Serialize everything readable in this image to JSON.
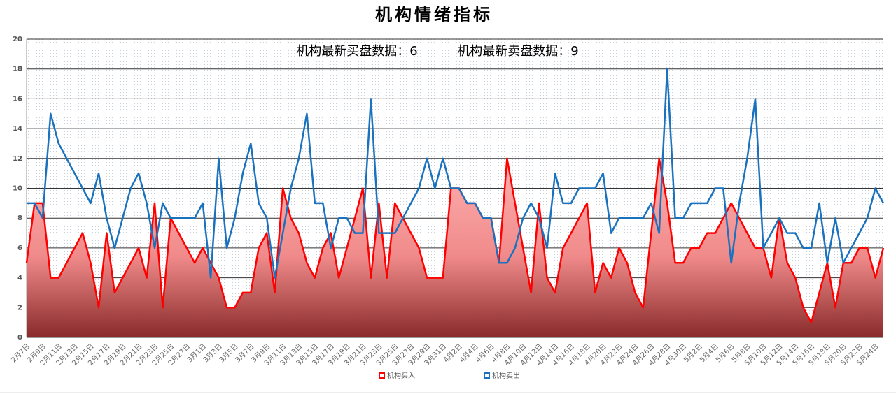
{
  "chart_data": {
    "type": "line",
    "title": "机构情绪指标",
    "annotations": [
      "机构最新买盘数据：6",
      "机构最新卖盘数据：9"
    ],
    "categories": [
      "2月7日",
      null,
      "2月9日",
      null,
      "2月11日",
      null,
      "2月13日",
      null,
      "2月15日",
      null,
      "2月17日",
      null,
      "2月19日",
      null,
      "2月21日",
      null,
      "2月23日",
      null,
      "2月25日",
      null,
      "2月27日",
      null,
      "3月1日",
      null,
      "3月3日",
      null,
      "3月5日",
      null,
      "3月7日",
      null,
      "3月9日",
      null,
      "3月11日",
      null,
      "3月13日",
      null,
      "3月15日",
      null,
      "3月17日",
      null,
      "3月19日",
      null,
      "3月21日",
      null,
      "3月23日",
      null,
      "3月25日",
      null,
      "3月27日",
      null,
      "3月29日",
      null,
      "3月31日",
      null,
      "4月2日",
      null,
      "4月4日",
      null,
      "4月6日",
      null,
      "4月8日",
      null,
      "4月10日",
      null,
      "4月12日",
      null,
      "4月14日",
      null,
      "4月16日",
      null,
      "4月18日",
      null,
      "4月20日",
      null,
      "4月22日",
      null,
      "4月24日",
      null,
      "4月26日",
      null,
      "4月28日",
      null,
      "4月30日",
      null,
      "5月2日",
      null,
      "5月4日",
      null,
      "5月6日",
      null,
      "5月8日",
      null,
      "5月10日",
      null,
      "5月12日",
      null,
      "5月14日",
      null,
      "5月16日",
      null,
      "5月18日",
      null,
      "5月20日",
      null,
      "5月22日",
      null,
      "5月24日",
      null
    ],
    "series": [
      {
        "name": "机构买入",
        "color": "#ff0000",
        "area": true,
        "values": [
          5,
          9,
          9,
          4,
          4,
          5,
          6,
          7,
          5,
          2,
          7,
          3,
          4,
          5,
          6,
          4,
          9,
          2,
          8,
          7,
          6,
          5,
          6,
          5,
          4,
          2,
          2,
          3,
          3,
          6,
          7,
          3,
          10,
          8,
          7,
          5,
          4,
          6,
          7,
          4,
          6,
          8,
          10,
          4,
          9,
          4,
          9,
          8,
          7,
          6,
          4,
          4,
          4,
          10,
          10,
          9,
          9,
          8,
          8,
          5,
          12,
          9,
          6,
          3,
          9,
          4,
          3,
          6,
          7,
          8,
          9,
          3,
          5,
          4,
          6,
          5,
          3,
          2,
          7,
          12,
          9,
          5,
          5,
          6,
          6,
          7,
          7,
          8,
          9,
          8,
          7,
          6,
          6,
          4,
          8,
          5,
          4,
          2,
          1,
          3,
          5,
          2,
          5,
          5,
          6,
          6,
          4,
          6
        ]
      },
      {
        "name": "机构卖出",
        "color": "#1a72bf",
        "area": false,
        "values": [
          9,
          9,
          8,
          15,
          13,
          12,
          11,
          10,
          9,
          11,
          8,
          6,
          8,
          10,
          11,
          9,
          6,
          9,
          8,
          8,
          8,
          8,
          9,
          4,
          12,
          6,
          8,
          11,
          13,
          9,
          8,
          4,
          7,
          10,
          12,
          15,
          9,
          9,
          6,
          8,
          8,
          7,
          7,
          16,
          7,
          7,
          7,
          8,
          9,
          10,
          12,
          10,
          12,
          10,
          10,
          9,
          9,
          8,
          8,
          5,
          5,
          6,
          8,
          9,
          8,
          6,
          11,
          9,
          9,
          10,
          10,
          10,
          11,
          7,
          8,
          8,
          8,
          8,
          9,
          7,
          18,
          8,
          8,
          9,
          9,
          9,
          10,
          10,
          5,
          9,
          12,
          16,
          6,
          7,
          8,
          7,
          7,
          6,
          6,
          9,
          5,
          8,
          5,
          6,
          7,
          8,
          10,
          9
        ]
      }
    ],
    "ylim": [
      0,
      20
    ],
    "yticks": [
      0,
      2,
      4,
      6,
      8,
      10,
      12,
      14,
      16,
      18,
      20
    ],
    "grid": true
  }
}
